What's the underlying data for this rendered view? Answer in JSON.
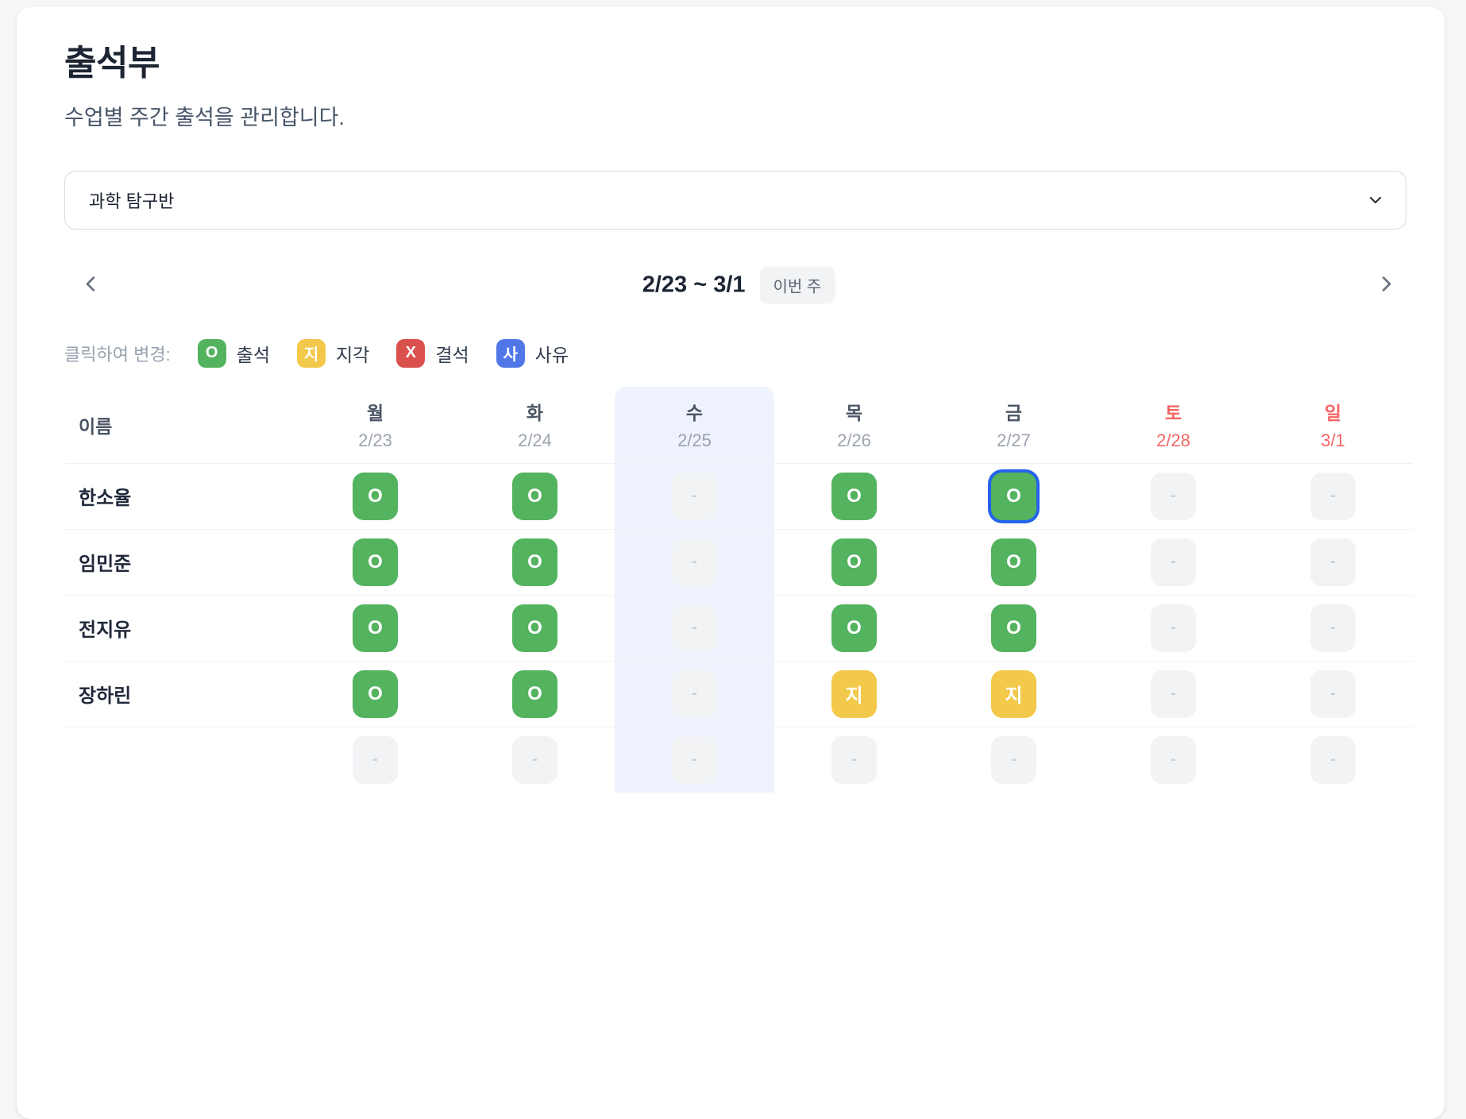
{
  "page": {
    "title": "출석부",
    "subtitle": "수업별 주간 출석을 관리합니다."
  },
  "class_select": {
    "value": "과학 탐구반"
  },
  "week_nav": {
    "range_label": "2/23 ~ 3/1",
    "badge": "이번 주"
  },
  "legend": {
    "prefix": "클릭하여 변경:",
    "items": [
      {
        "status": "present",
        "label": "출석"
      },
      {
        "status": "late",
        "label": "지각"
      },
      {
        "status": "absent",
        "label": "결석"
      },
      {
        "status": "excused",
        "label": "사유"
      }
    ]
  },
  "statuses": {
    "present": {
      "glyph": "O",
      "bg": "#54b35f",
      "fg": "#ffffff"
    },
    "late": {
      "glyph": "지",
      "bg": "#f2c94a",
      "fg": "#ffffff"
    },
    "absent": {
      "glyph": "X",
      "bg": "#d9504c",
      "fg": "#ffffff"
    },
    "excused": {
      "glyph": "사",
      "bg": "#5076e8",
      "fg": "#ffffff"
    },
    "none": {
      "glyph": "-",
      "bg": "#f1f3f5",
      "fg": "#c8d0db"
    }
  },
  "table": {
    "name_header": "이름",
    "days": [
      {
        "name": "월",
        "date": "2/23",
        "weekend": false,
        "today": false
      },
      {
        "name": "화",
        "date": "2/24",
        "weekend": false,
        "today": false
      },
      {
        "name": "수",
        "date": "2/25",
        "weekend": false,
        "today": true
      },
      {
        "name": "목",
        "date": "2/26",
        "weekend": false,
        "today": false
      },
      {
        "name": "금",
        "date": "2/27",
        "weekend": false,
        "today": false
      },
      {
        "name": "토",
        "date": "2/28",
        "weekend": true,
        "today": false
      },
      {
        "name": "일",
        "date": "3/1",
        "weekend": true,
        "today": false
      }
    ],
    "focused_cell": {
      "row": 0,
      "col": 4
    },
    "rows": [
      {
        "name": "한소율",
        "cells": [
          "present",
          "present",
          "none",
          "present",
          "present",
          "none",
          "none"
        ]
      },
      {
        "name": "임민준",
        "cells": [
          "present",
          "present",
          "none",
          "present",
          "present",
          "none",
          "none"
        ]
      },
      {
        "name": "전지유",
        "cells": [
          "present",
          "present",
          "none",
          "present",
          "present",
          "none",
          "none"
        ]
      },
      {
        "name": "장하린",
        "cells": [
          "present",
          "present",
          "none",
          "late",
          "late",
          "none",
          "none"
        ]
      },
      {
        "name": "",
        "cells": [
          "none",
          "none",
          "none",
          "none",
          "none",
          "none",
          "none"
        ]
      }
    ]
  },
  "colors": {
    "accent_dark": "#1d2534",
    "today_column_bg": "#eef3fd",
    "weekend_text": "#f56565",
    "focus_ring": "#2563eb",
    "badge_bg": "#f1f3f5"
  }
}
